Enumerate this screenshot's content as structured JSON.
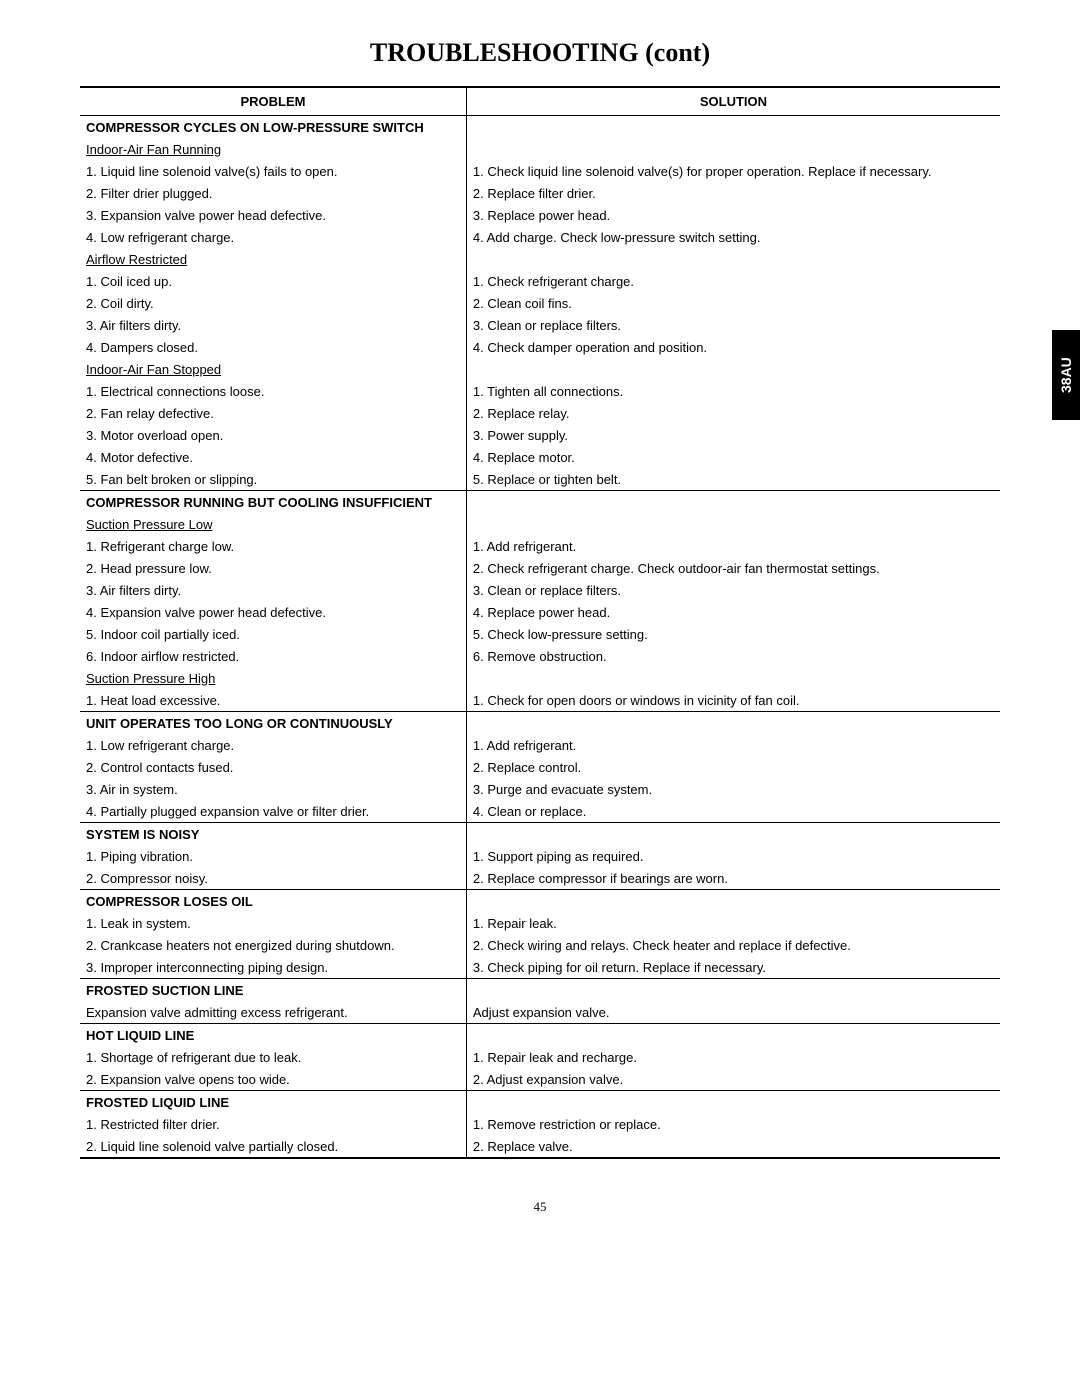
{
  "title": "TROUBLESHOOTING (cont)",
  "side_tab": "38AU",
  "page_number": "45",
  "headers": {
    "problem": "PROBLEM",
    "solution": "SOLUTION"
  },
  "sections": [
    {
      "header": "COMPRESSOR CYCLES ON LOW-PRESSURE SWITCH",
      "groups": [
        {
          "sub": "Indoor-Air Fan Running",
          "rows": [
            {
              "p": "1.  Liquid line solenoid valve(s) fails to open.",
              "s": "1.  Check liquid line solenoid valve(s) for proper operation. Replace if necessary."
            },
            {
              "p": "2.  Filter drier plugged.",
              "s": "2.  Replace filter drier."
            },
            {
              "p": "3.  Expansion valve power head defective.",
              "s": "3.  Replace power head."
            },
            {
              "p": "4.  Low refrigerant charge.",
              "s": "4.  Add charge. Check low-pressure switch setting."
            }
          ]
        },
        {
          "sub": "Airflow Restricted",
          "rows": [
            {
              "p": "1.  Coil iced up.",
              "s": "1.  Check refrigerant charge."
            },
            {
              "p": "2.  Coil dirty.",
              "s": "2.  Clean coil fins."
            },
            {
              "p": "3.  Air filters dirty.",
              "s": "3.  Clean or replace filters."
            },
            {
              "p": "4.  Dampers closed.",
              "s": "4.  Check damper operation and position."
            }
          ]
        },
        {
          "sub": "Indoor-Air Fan Stopped",
          "rows": [
            {
              "p": "1.  Electrical connections loose.",
              "s": "1.  Tighten all connections."
            },
            {
              "p": "2.  Fan relay defective.",
              "s": "2.  Replace relay."
            },
            {
              "p": "3.  Motor overload open.",
              "s": "3.  Power supply."
            },
            {
              "p": "4.  Motor defective.",
              "s": "4.  Replace motor."
            },
            {
              "p": "5.  Fan belt broken or slipping.",
              "s": "5.  Replace or tighten belt."
            }
          ]
        }
      ]
    },
    {
      "header": "COMPRESSOR RUNNING BUT COOLING INSUFFICIENT",
      "groups": [
        {
          "sub": "Suction Pressure Low",
          "rows": [
            {
              "p": "1.  Refrigerant charge low.",
              "s": "1.  Add refrigerant."
            },
            {
              "p": "2.  Head pressure low.",
              "s": "2.  Check refrigerant charge. Check outdoor-air fan thermostat settings."
            },
            {
              "p": "3.  Air filters dirty.",
              "s": "3.  Clean or replace filters."
            },
            {
              "p": "4.  Expansion valve power head defective.",
              "s": "4.  Replace power head."
            },
            {
              "p": "5.  Indoor coil partially iced.",
              "s": "5.  Check low-pressure setting."
            },
            {
              "p": "6.  Indoor airflow restricted.",
              "s": "6.  Remove obstruction."
            }
          ]
        },
        {
          "sub": "Suction Pressure High",
          "rows": [
            {
              "p": "1.  Heat load excessive.",
              "s": "1.  Check for open doors or windows in vicinity of fan coil."
            }
          ]
        }
      ]
    },
    {
      "header": "UNIT OPERATES TOO LONG OR CONTINUOUSLY",
      "groups": [
        {
          "rows": [
            {
              "p": "1.  Low refrigerant charge.",
              "s": "1.  Add refrigerant."
            },
            {
              "p": "2.  Control contacts fused.",
              "s": "2.  Replace control."
            },
            {
              "p": "3.  Air in system.",
              "s": "3.  Purge and evacuate system."
            },
            {
              "p": "4.  Partially plugged expansion valve or filter drier.",
              "s": "4.  Clean or replace."
            }
          ]
        }
      ]
    },
    {
      "header": "SYSTEM IS NOISY",
      "groups": [
        {
          "rows": [
            {
              "p": "1.  Piping vibration.",
              "s": "1.  Support piping as required."
            },
            {
              "p": "2.  Compressor noisy.",
              "s": "2.  Replace compressor if bearings are worn."
            }
          ]
        }
      ]
    },
    {
      "header": "COMPRESSOR LOSES OIL",
      "groups": [
        {
          "rows": [
            {
              "p": "1.  Leak in system.",
              "s": "1.  Repair leak."
            },
            {
              "p": "2.  Crankcase heaters not energized during shutdown.",
              "s": "2.  Check wiring and relays. Check heater and replace if defective."
            },
            {
              "p": "3.  Improper interconnecting piping design.",
              "s": "3.  Check piping for oil return. Replace if necessary."
            }
          ]
        }
      ]
    },
    {
      "header": "FROSTED SUCTION LINE",
      "groups": [
        {
          "rows": [
            {
              "p": "Expansion valve admitting excess refrigerant.",
              "s": "Adjust expansion valve.",
              "noindent": true
            }
          ]
        }
      ]
    },
    {
      "header": "HOT LIQUID LINE",
      "groups": [
        {
          "rows": [
            {
              "p": "1.  Shortage of refrigerant due to leak.",
              "s": "1.  Repair leak and recharge."
            },
            {
              "p": "2.  Expansion valve opens too wide.",
              "s": "2.  Adjust expansion valve."
            }
          ]
        }
      ]
    },
    {
      "header": "FROSTED LIQUID LINE",
      "groups": [
        {
          "rows": [
            {
              "p": "1.  Restricted filter drier.",
              "s": "1.  Remove restriction or replace."
            },
            {
              "p": "2.  Liquid line solenoid valve partially closed.",
              "s": "2.  Replace valve."
            }
          ]
        }
      ]
    }
  ]
}
